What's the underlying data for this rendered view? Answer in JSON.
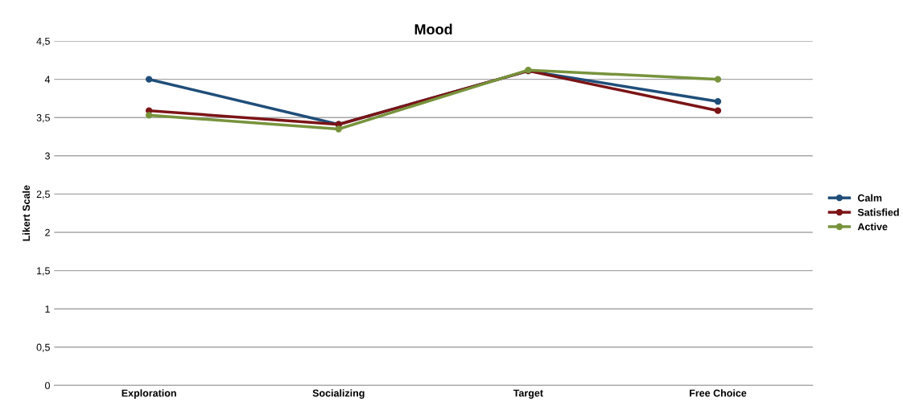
{
  "chart_data": {
    "type": "line",
    "title": "Mood",
    "ylabel": "Likert Scale",
    "categories": [
      "Exploration",
      "Socializing",
      "Target",
      "Free Choice"
    ],
    "series": [
      {
        "name": "Calm",
        "color": "#1f4e79",
        "values": [
          4.0,
          3.41,
          4.11,
          3.71
        ]
      },
      {
        "name": "Satisfied",
        "color": "#7b1416",
        "values": [
          3.59,
          3.41,
          4.11,
          3.59
        ]
      },
      {
        "name": "Active",
        "color": "#77933c",
        "values": [
          3.53,
          3.35,
          4.12,
          4.0
        ]
      }
    ],
    "ylim": [
      0,
      4.5
    ],
    "yticks": [
      0,
      {
        "value": 0.5,
        "label": "0,5"
      },
      1,
      {
        "value": 1.5,
        "label": "1,5"
      },
      2,
      {
        "value": 2.5,
        "label": "2,5"
      },
      3,
      {
        "value": 3.5,
        "label": "3,5"
      },
      4,
      {
        "value": 4.5,
        "label": "4,5"
      }
    ],
    "grid": "y",
    "legend": "right",
    "marker": "circle",
    "line_style": "solid"
  }
}
